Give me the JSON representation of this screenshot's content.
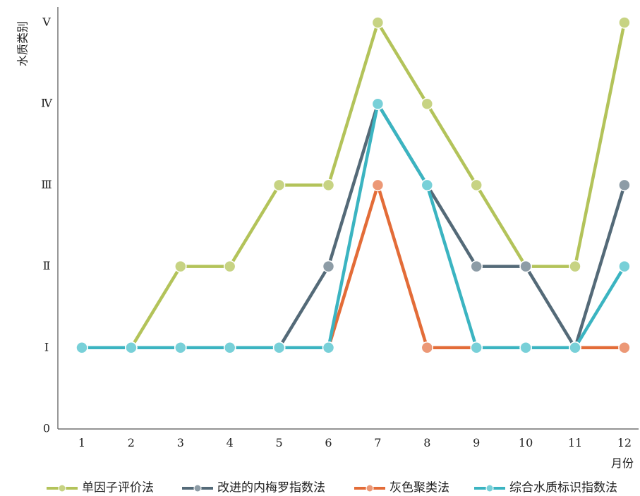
{
  "chart_data": {
    "type": "line",
    "title": "",
    "xlabel": "月份",
    "ylabel": "水质类别",
    "categories": [
      "1",
      "2",
      "3",
      "4",
      "5",
      "6",
      "7",
      "8",
      "9",
      "10",
      "11",
      "12"
    ],
    "y_ticks": [
      {
        "value": 0,
        "label": "0"
      },
      {
        "value": 1,
        "label": "Ⅰ"
      },
      {
        "value": 2,
        "label": "Ⅱ"
      },
      {
        "value": 3,
        "label": "Ⅲ"
      },
      {
        "value": 4,
        "label": "Ⅳ"
      },
      {
        "value": 5,
        "label": "Ⅴ"
      }
    ],
    "ylim": [
      0,
      5.2
    ],
    "grid": false,
    "legend_position": "bottom",
    "series": [
      {
        "name": "单因子评价法",
        "values": [
          1,
          1,
          2,
          2,
          3,
          3,
          5,
          4,
          3,
          2,
          2,
          5
        ],
        "color": "#b3c35a",
        "marker": "#c7d383"
      },
      {
        "name": "改进的内梅罗指数法",
        "values": [
          1,
          1,
          1,
          1,
          1,
          2,
          4,
          3,
          2,
          2,
          1,
          3
        ],
        "color": "#546a78",
        "marker": "#8d9ca6"
      },
      {
        "name": "灰色聚类法",
        "values": [
          1,
          1,
          1,
          1,
          1,
          1,
          3,
          1,
          1,
          1,
          1,
          1
        ],
        "color": "#e36c38",
        "marker": "#ec9876"
      },
      {
        "name": "综合水质标识指数法",
        "values": [
          1,
          1,
          1,
          1,
          1,
          1,
          4,
          3,
          1,
          1,
          1,
          2
        ],
        "color": "#3bb4c1",
        "marker": "#78d0d8"
      }
    ]
  }
}
